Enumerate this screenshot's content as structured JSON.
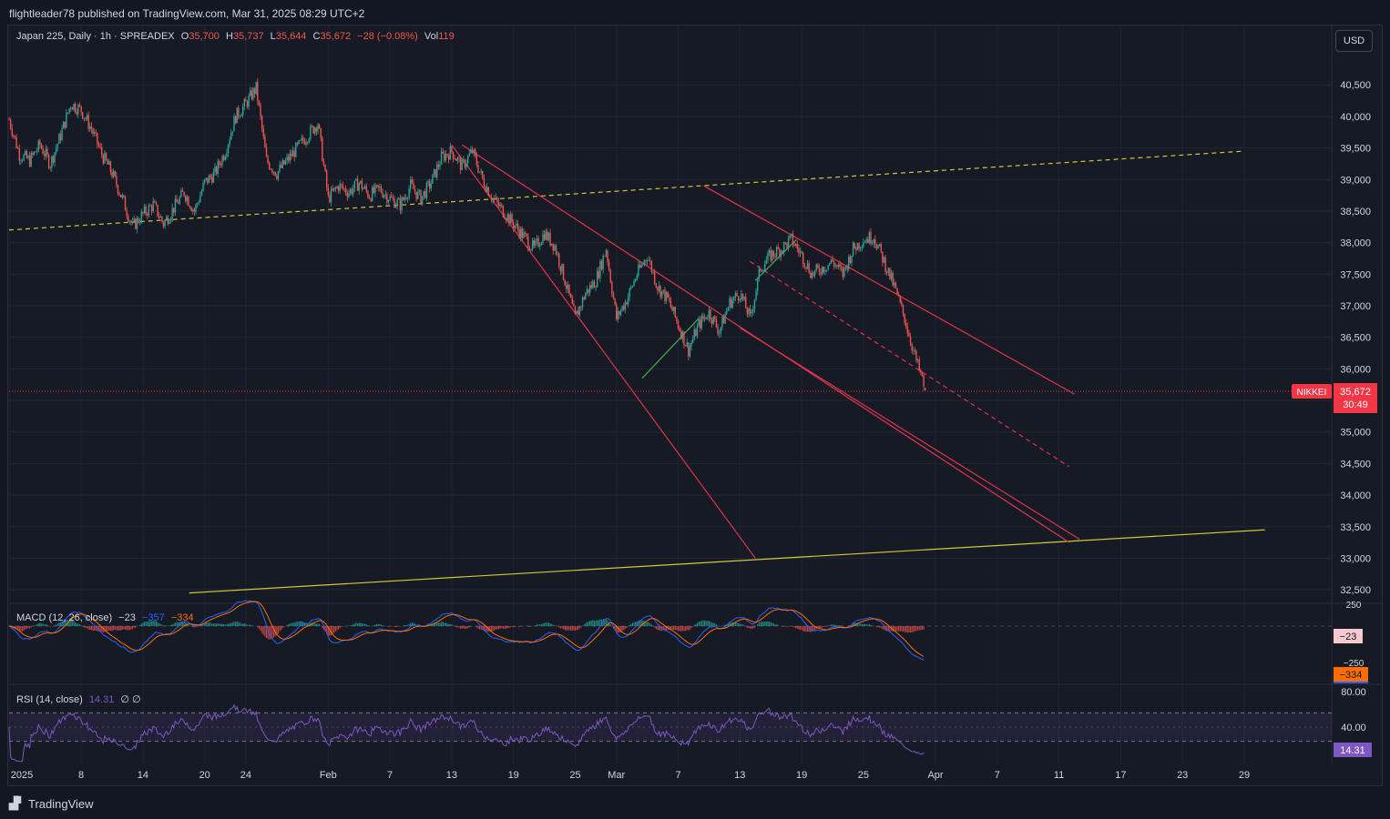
{
  "header": {
    "publisher_line": "flightleader78 published on TradingView.com, Mar 31, 2025 08:29 UTC+2"
  },
  "legend": {
    "symbol": "Japan 225, Daily · 1h · SPREADEX",
    "o_label": "O",
    "o_value": "35,700",
    "h_label": "H",
    "h_value": "35,737",
    "l_label": "L",
    "l_value": "35,644",
    "c_label": "C",
    "c_value": "35,672",
    "change": "−28 (−0.08%)",
    "vol_label": "Vol",
    "vol_value": "119"
  },
  "currency_button": "USD",
  "price_tag": {
    "name": "NIKKEI",
    "value": "35,672",
    "countdown": "30:49"
  },
  "macd": {
    "label": "MACD (12, 26, close)",
    "v1": "−23",
    "v2": "−357",
    "v3": "−334",
    "axis_labels": [
      "250",
      "−250"
    ],
    "tag_hist": "−23",
    "tag_signal": "−334"
  },
  "rsi": {
    "label": "RSI (14, close)",
    "value": "14.31",
    "extra": "∅  ∅",
    "axis_labels": [
      "80.00",
      "40.00"
    ],
    "tag": "14.31"
  },
  "footer": {
    "brand": "TradingView"
  },
  "colors": {
    "background": "#161a25",
    "up": "#26a69a",
    "down": "#ef5350",
    "trend_red": "#e0334d",
    "trend_yellow": "#d4c53a",
    "trend_green": "#4caf50",
    "macd_line": "#2962ff",
    "signal_line": "#ff6d00",
    "rsi_line": "#7e57c2"
  },
  "chart_data": {
    "type": "candlestick",
    "title": "Japan 225, Daily · 1h · SPREADEX",
    "y_ticks": [
      40500,
      40000,
      39500,
      39000,
      38500,
      38000,
      37500,
      37000,
      36500,
      36000,
      35500,
      35000,
      34500,
      34000,
      33500,
      33000,
      32500
    ],
    "y_tick_labels": [
      "40,500",
      "40,000",
      "39,500",
      "39,000",
      "38,500",
      "38,000",
      "37,500",
      "37,000",
      "36,500",
      "36,000",
      "",
      "35,000",
      "34,500",
      "34,000",
      "33,500",
      "33,000",
      "32,500"
    ],
    "ylim": [
      32300,
      40950
    ],
    "x_ticks": [
      {
        "label": "2025",
        "day": 0
      },
      {
        "label": "8",
        "day": 7
      },
      {
        "label": "14",
        "day": 13
      },
      {
        "label": "20",
        "day": 19
      },
      {
        "label": "24",
        "day": 23
      },
      {
        "label": "Feb",
        "day": 31
      },
      {
        "label": "7",
        "day": 37
      },
      {
        "label": "13",
        "day": 43
      },
      {
        "label": "19",
        "day": 49
      },
      {
        "label": "25",
        "day": 55
      },
      {
        "label": "Mar",
        "day": 59
      },
      {
        "label": "7",
        "day": 65
      },
      {
        "label": "13",
        "day": 71
      },
      {
        "label": "19",
        "day": 77
      },
      {
        "label": "25",
        "day": 83
      },
      {
        "label": "Apr",
        "day": 90
      },
      {
        "label": "7",
        "day": 96
      },
      {
        "label": "11",
        "day": 102
      },
      {
        "label": "17",
        "day": 108
      },
      {
        "label": "23",
        "day": 114
      },
      {
        "label": "29",
        "day": 120
      }
    ],
    "price_path": [
      [
        0,
        39950
      ],
      [
        1,
        39400
      ],
      [
        2,
        39300
      ],
      [
        3,
        39550
      ],
      [
        4,
        39250
      ],
      [
        5,
        39700
      ],
      [
        6,
        40200
      ],
      [
        7,
        40100
      ],
      [
        8,
        39800
      ],
      [
        9,
        39400
      ],
      [
        10,
        39100
      ],
      [
        11,
        38700
      ],
      [
        12,
        38250
      ],
      [
        13,
        38450
      ],
      [
        14,
        38600
      ],
      [
        15,
        38300
      ],
      [
        16,
        38550
      ],
      [
        17,
        38800
      ],
      [
        18,
        38500
      ],
      [
        19,
        38950
      ],
      [
        20,
        39100
      ],
      [
        21,
        39450
      ],
      [
        22,
        40000
      ],
      [
        23,
        40200
      ],
      [
        24,
        40450
      ],
      [
        25,
        39300
      ],
      [
        26,
        39100
      ],
      [
        27,
        39300
      ],
      [
        28,
        39500
      ],
      [
        29,
        39700
      ],
      [
        30,
        39900
      ],
      [
        31,
        38700
      ],
      [
        32,
        38900
      ],
      [
        33,
        38800
      ],
      [
        34,
        38950
      ],
      [
        35,
        38750
      ],
      [
        36,
        38850
      ],
      [
        37,
        38700
      ],
      [
        38,
        38600
      ],
      [
        39,
        38900
      ],
      [
        40,
        38700
      ],
      [
        41,
        38950
      ],
      [
        42,
        39350
      ],
      [
        43,
        39450
      ],
      [
        44,
        39200
      ],
      [
        45,
        39450
      ],
      [
        46,
        39000
      ],
      [
        47,
        38700
      ],
      [
        48,
        38500
      ],
      [
        49,
        38300
      ],
      [
        50,
        38100
      ],
      [
        51,
        37900
      ],
      [
        52,
        38150
      ],
      [
        53,
        37950
      ],
      [
        54,
        37400
      ],
      [
        55,
        36800
      ],
      [
        56,
        37200
      ],
      [
        57,
        37400
      ],
      [
        58,
        37900
      ],
      [
        59,
        36800
      ],
      [
        60,
        37100
      ],
      [
        61,
        37500
      ],
      [
        62,
        37800
      ],
      [
        63,
        37300
      ],
      [
        64,
        37100
      ],
      [
        65,
        36700
      ],
      [
        66,
        36300
      ],
      [
        67,
        36700
      ],
      [
        68,
        36900
      ],
      [
        69,
        36600
      ],
      [
        70,
        37050
      ],
      [
        71,
        37200
      ],
      [
        72,
        36800
      ],
      [
        73,
        37600
      ],
      [
        74,
        37800
      ],
      [
        75,
        37900
      ],
      [
        76,
        38050
      ],
      [
        77,
        37800
      ],
      [
        78,
        37500
      ],
      [
        79,
        37600
      ],
      [
        80,
        37700
      ],
      [
        81,
        37500
      ],
      [
        82,
        37900
      ],
      [
        83,
        38050
      ],
      [
        84,
        38100
      ],
      [
        85,
        37700
      ],
      [
        86,
        37300
      ],
      [
        87,
        36800
      ],
      [
        88,
        36200
      ],
      [
        89,
        35672
      ]
    ],
    "current_price": 35672,
    "trendlines": [
      {
        "color": "yellow",
        "style": "dashed",
        "p1": [
          0,
          38200
        ],
        "p2": [
          120,
          39450
        ]
      },
      {
        "color": "yellow",
        "style": "solid",
        "p1": [
          17.5,
          32450
        ],
        "p2": [
          122,
          33450
        ]
      },
      {
        "color": "red",
        "style": "solid",
        "p1": [
          43,
          39550
        ],
        "p2": [
          72.5,
          33000
        ]
      },
      {
        "color": "red",
        "style": "solid",
        "p1": [
          44,
          39550
        ],
        "p2": [
          103,
          33250
        ]
      },
      {
        "color": "red",
        "style": "solid",
        "p1": [
          71,
          36650
        ],
        "p2": [
          104,
          33300
        ]
      },
      {
        "color": "red",
        "style": "solid",
        "p1": [
          67.5,
          38900
        ],
        "p2": [
          103.5,
          35600
        ]
      },
      {
        "color": "red",
        "style": "dashed",
        "p1": [
          72,
          37700
        ],
        "p2": [
          103,
          34450
        ]
      },
      {
        "color": "green",
        "style": "solid",
        "p1": [
          61.5,
          35850
        ],
        "p2": [
          67,
          36800
        ]
      },
      {
        "color": "green",
        "style": "solid",
        "p1": [
          72.5,
          37400
        ],
        "p2": [
          76.5,
          38050
        ]
      }
    ],
    "macd": {
      "ylim": [
        -700,
        260
      ],
      "hist_last": -23,
      "macd_last": -357,
      "signal_last": -334
    },
    "rsi": {
      "ylim": [
        0,
        100
      ],
      "bands": [
        30,
        70
      ],
      "last": 14.31
    }
  }
}
